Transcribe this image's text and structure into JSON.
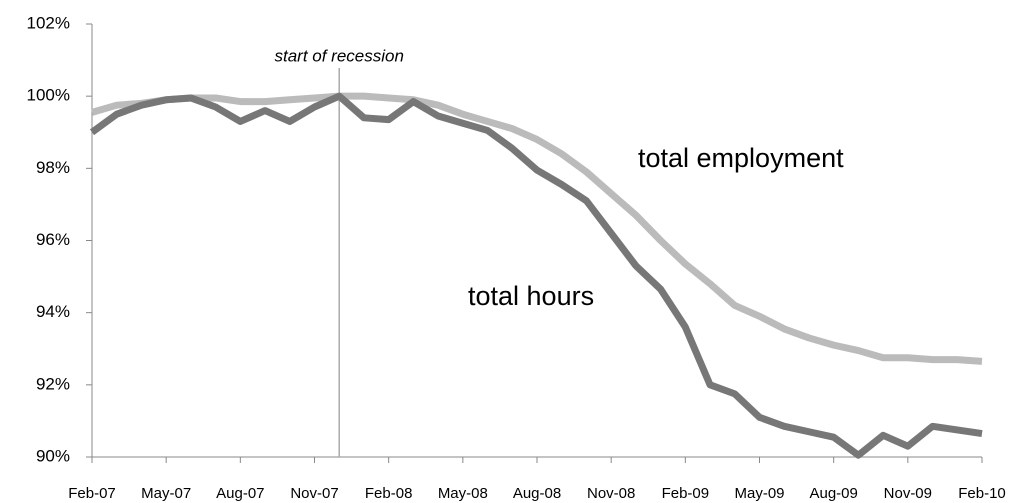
{
  "chart_data": {
    "type": "line",
    "categories": [
      "Feb-07",
      null,
      null,
      "May-07",
      null,
      null,
      "Aug-07",
      null,
      null,
      "Nov-07",
      null,
      null,
      "Feb-08",
      null,
      null,
      "May-08",
      null,
      null,
      "Aug-08",
      null,
      null,
      "Nov-08",
      null,
      null,
      "Feb-09",
      null,
      null,
      "May-09",
      null,
      null,
      "Aug-09",
      null,
      null,
      "Nov-09",
      null,
      null,
      "Feb-10"
    ],
    "series": [
      {
        "name": "total hours",
        "color": "#777777",
        "values": [
          99.0,
          99.5,
          99.75,
          99.9,
          99.95,
          99.7,
          99.3,
          99.6,
          99.3,
          99.7,
          100.0,
          99.4,
          99.35,
          99.85,
          99.45,
          99.25,
          99.05,
          98.55,
          97.95,
          97.55,
          97.1,
          96.2,
          95.3,
          94.65,
          93.6,
          92.0,
          91.75,
          91.1,
          90.85,
          90.7,
          90.55,
          90.05,
          90.6,
          90.3,
          90.85,
          90.75,
          90.65
        ]
      },
      {
        "name": "total employment",
        "color": "#bbbbbb",
        "values": [
          99.55,
          99.75,
          99.8,
          99.9,
          99.95,
          99.95,
          99.85,
          99.85,
          99.9,
          99.95,
          100.0,
          100.0,
          99.95,
          99.9,
          99.75,
          99.5,
          99.3,
          99.1,
          98.8,
          98.4,
          97.9,
          97.3,
          96.7,
          96.0,
          95.35,
          94.8,
          94.2,
          93.9,
          93.55,
          93.3,
          93.1,
          92.95,
          92.75,
          92.75,
          92.7,
          92.7,
          92.65
        ]
      }
    ],
    "annotation": {
      "text": "start of recession",
      "at": 10
    },
    "ylim": [
      90,
      102
    ],
    "yticks": [
      {
        "value": 90,
        "label": "90%"
      },
      {
        "value": 92,
        "label": "92%"
      },
      {
        "value": 94,
        "label": "94%"
      },
      {
        "value": 96,
        "label": "96%"
      },
      {
        "value": 98,
        "label": "98%"
      },
      {
        "value": 100,
        "label": "100%"
      },
      {
        "value": 102,
        "label": "102%"
      }
    ],
    "grid": false
  }
}
